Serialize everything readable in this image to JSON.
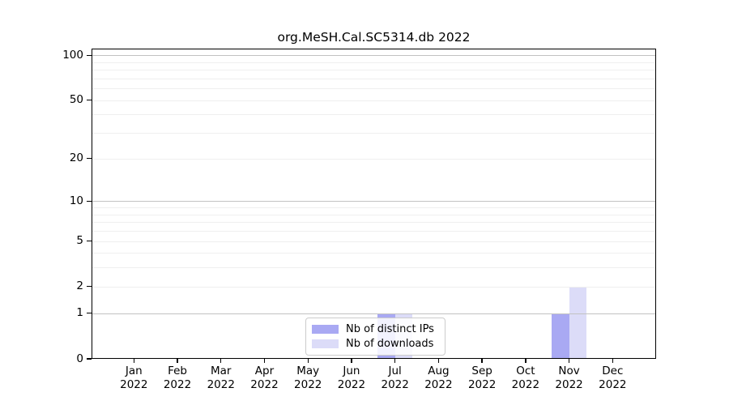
{
  "chart_data": {
    "type": "bar",
    "title": "org.MeSH.Cal.SC5314.db 2022",
    "x_months": [
      "Jan",
      "Feb",
      "Mar",
      "Apr",
      "May",
      "Jun",
      "Jul",
      "Aug",
      "Sep",
      "Oct",
      "Nov",
      "Dec"
    ],
    "x_year": "2022",
    "series": [
      {
        "name": "Nb of distinct IPs",
        "color": "#a9a9f3",
        "values": [
          0,
          0,
          0,
          0,
          0,
          0,
          1,
          0,
          0,
          0,
          1,
          0
        ]
      },
      {
        "name": "Nb of downloads",
        "color": "#dcdcf8",
        "values": [
          0,
          0,
          0,
          0,
          0,
          0,
          1,
          0,
          0,
          0,
          2,
          0
        ]
      }
    ],
    "yscale": "log1p",
    "ylim": [
      0,
      110.8
    ],
    "yticks": [
      0,
      1,
      2,
      5,
      10,
      20,
      50,
      100
    ],
    "grid": {
      "major": [
        1,
        10,
        100
      ],
      "minor": [
        2,
        3,
        4,
        5,
        6,
        7,
        8,
        9,
        20,
        30,
        40,
        50,
        60,
        70,
        80,
        90
      ]
    },
    "legend_position": "bottom-center"
  },
  "colors": {
    "axis": "#000000",
    "grid_major": "#c2c2c2",
    "grid_minor": "#efefef",
    "legend_border": "#cccccc",
    "background": "#ffffff"
  }
}
